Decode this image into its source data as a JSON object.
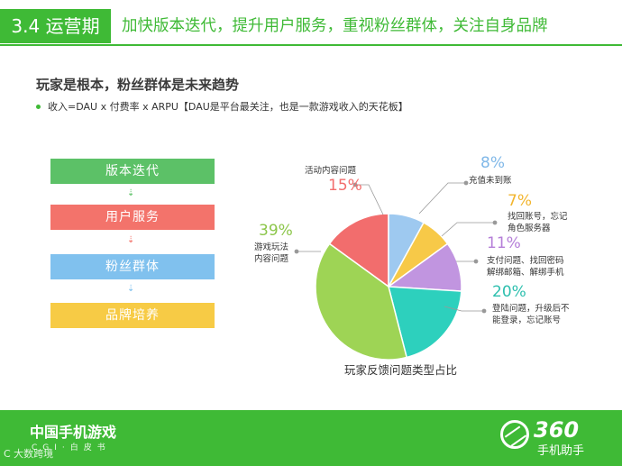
{
  "header": {
    "tag": "3.4 运营期",
    "text": "加快版本迭代，提升用户服务，重视粉丝群体，关注自身品牌"
  },
  "subtitle": "玩家是根本，粉丝群体是未来趋势",
  "bullet": "收入=DAU x 付费率 x ARPU【DAU是平台最关注，也是一款游戏收入的天花板】",
  "flow": {
    "steps": [
      {
        "label": "版本迭代",
        "color": "#5cc167"
      },
      {
        "label": "用户服务",
        "color": "#f3736b"
      },
      {
        "label": "粉丝群体",
        "color": "#80c1ee"
      },
      {
        "label": "品牌培养",
        "color": "#f7cb45"
      }
    ],
    "arrow": "⇣"
  },
  "chart_data": {
    "type": "pie",
    "title": "玩家反馈问题类型占比",
    "slices": [
      {
        "pct": "15%",
        "label": "活动内容问题",
        "value": 15,
        "color": "#f26d6d"
      },
      {
        "pct": "8%",
        "label": "充值未到账",
        "value": 8,
        "color": "#9ec9f0"
      },
      {
        "pct": "7%",
        "label": "找回账号，忘记角色服务器",
        "value": 7,
        "color": "#f7c948"
      },
      {
        "pct": "11%",
        "label": "支付问题、找回密码解绑邮箱、解绑手机",
        "value": 11,
        "color": "#c195e0"
      },
      {
        "pct": "20%",
        "label": "登陆问题，升级后不能登录，忘记账号",
        "value": 20,
        "color": "#2dd0bd"
      },
      {
        "pct": "39%",
        "label": "游戏玩法内容问题",
        "value": 39,
        "color": "#9ed455"
      }
    ]
  },
  "labels": {
    "s0": {
      "pct": "15%",
      "line1": "活动内容问题"
    },
    "s1": {
      "pct": "8%",
      "line1": "充值未到账"
    },
    "s2": {
      "pct": "7%",
      "line1": "找回账号，忘记",
      "line2": "角色服务器"
    },
    "s3": {
      "pct": "11%",
      "line1": "支付问题、找回密码",
      "line2": "解绑邮箱、解绑手机"
    },
    "s4": {
      "pct": "20%",
      "line1": "登陆问题，升级后不",
      "line2": "能登录，忘记账号"
    },
    "s5": {
      "pct": "39%",
      "line1": "游戏玩法",
      "line2": "内容问题"
    }
  },
  "colors": {
    "brand": "#3fba36",
    "pct_red": "#f26d6d",
    "pct_blue": "#80b8e8",
    "pct_yellow": "#f2b52e",
    "pct_purple": "#b57fd8",
    "pct_teal": "#2dbfae",
    "pct_green": "#8cc64a"
  },
  "footer": {
    "title": "中国手机游戏",
    "sub": "CGI·白皮书",
    "watermark": "C 大数跨境",
    "logo_num": "360",
    "logo_text": "手机助手"
  }
}
